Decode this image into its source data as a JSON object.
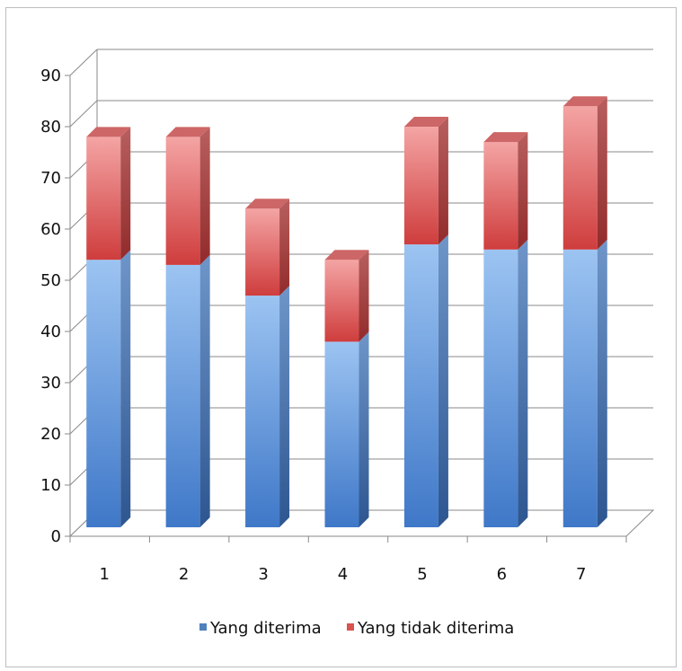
{
  "chart_data": {
    "type": "bar",
    "stacked": true,
    "style": "3d-column",
    "categories": [
      "1",
      "2",
      "3",
      "4",
      "5",
      "6",
      "7"
    ],
    "series": [
      {
        "name": "Yang diterima",
        "values": [
          54,
          53,
          47,
          38,
          57,
          56,
          56
        ],
        "color": "#4f81bd"
      },
      {
        "name": "Yang tidak diterima",
        "values": [
          24,
          25,
          17,
          16,
          23,
          21,
          28
        ],
        "color": "#d9534f"
      }
    ],
    "ylim": [
      0,
      90
    ],
    "yticks": [
      0,
      10,
      20,
      30,
      40,
      50,
      60,
      70,
      80,
      90
    ],
    "grid": true,
    "legend": "bottom",
    "title": "",
    "xlabel": "",
    "ylabel": ""
  }
}
